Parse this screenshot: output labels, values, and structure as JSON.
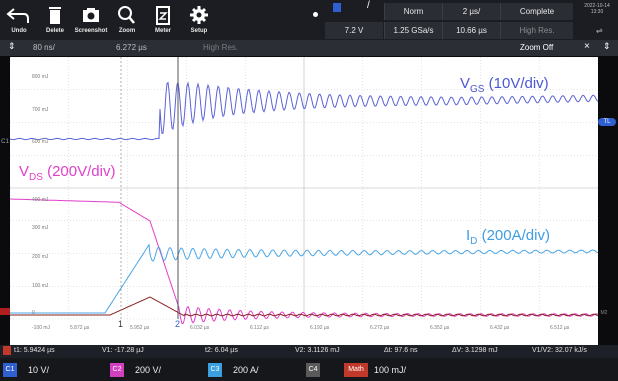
{
  "toolbar": {
    "buttons": [
      {
        "label": "Undo",
        "icon": "undo-icon"
      },
      {
        "label": "Delete",
        "icon": "trash-icon"
      },
      {
        "label": "Screenshot",
        "icon": "camera-icon"
      },
      {
        "label": "Zoom",
        "icon": "magnifier-icon"
      },
      {
        "label": "Meter",
        "icon": "meter-icon"
      },
      {
        "label": "Setup",
        "icon": "gear-icon"
      }
    ],
    "trigger_level": "7.2 V",
    "trigger_mode": "Norm",
    "sample_rate": "1.25 GSa/s",
    "timebase": "2 µs/",
    "record_length": "10.66 µs",
    "acq_status": "Complete",
    "acq_mode": "High Res.",
    "date": "2022-10-14",
    "time": "13:30"
  },
  "row2": {
    "zoom_scale": "80 ns/",
    "zoom_position": "6.272 µs",
    "zoom_mode": "High Res.",
    "zoom_state": "Zoom Off"
  },
  "labels": {
    "vgs_main": "V",
    "vgs_sub": "GS",
    "vgs_unit": " (10V/div)",
    "vds_main": "V",
    "vds_sub": "DS",
    "vds_unit": " (200V/div)",
    "id_main": "I",
    "id_sub": "D",
    "id_unit": " (200A/div)"
  },
  "measurements": {
    "t1": "t1: 5.9424 µs",
    "v1": "V1: -17.28 µJ",
    "t2": "t2: 6.04 µs",
    "v2": "V2: 3.1126 mJ",
    "dt": "Δt: 97.6 ns",
    "dv": "ΔV: 3.1298 mJ",
    "ratio": "V1/V2: 32.07 kJ/s"
  },
  "channels": [
    {
      "badge": "C1",
      "value": "10 V/",
      "color": "#2f5fd0"
    },
    {
      "badge": "C2",
      "value": "200 V/",
      "color": "#d23fbf"
    },
    {
      "badge": "C3",
      "value": "200 A/",
      "color": "#3aa0e0"
    },
    {
      "badge": "C4",
      "value": "",
      "color": "#5a5a5a"
    }
  ],
  "math": {
    "badge": "Math",
    "value": "100 mJ/"
  },
  "colors": {
    "vgs": "#5b62d6",
    "vds": "#e23ec9",
    "id": "#4aa6e6",
    "power": "#8a1f1f"
  }
}
